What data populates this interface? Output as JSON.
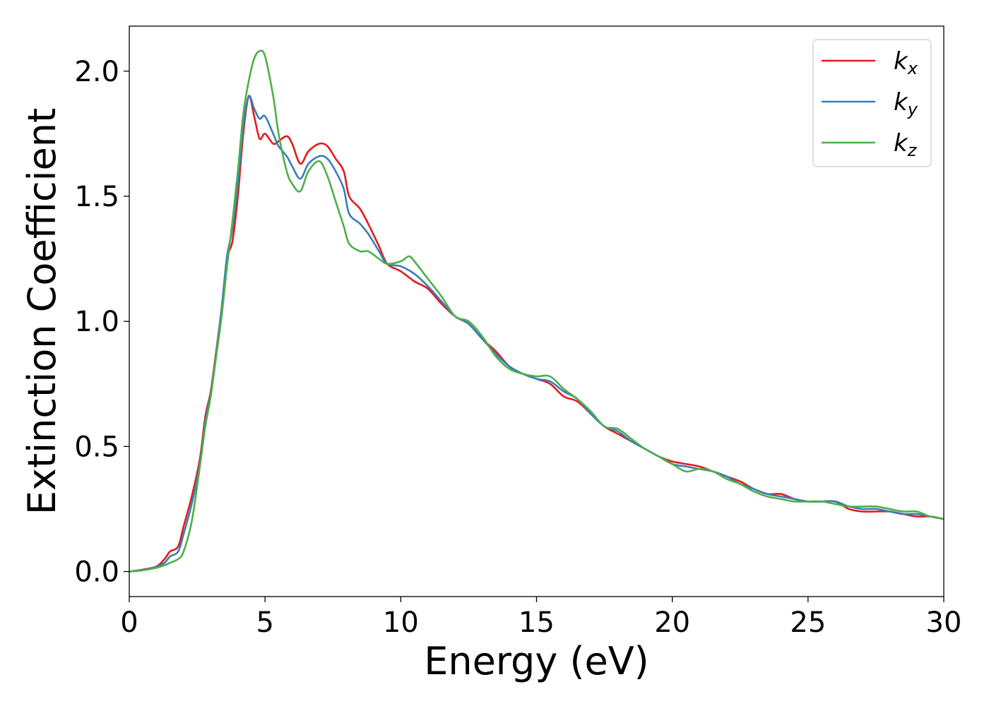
{
  "chart_data": {
    "type": "line",
    "title": "",
    "xlabel": "Energy (eV)",
    "ylabel": "Extinction Coefficient",
    "xlim": [
      0,
      30
    ],
    "ylim": [
      -0.1,
      2.18
    ],
    "xticks": [
      0,
      5,
      10,
      15,
      20,
      25,
      30
    ],
    "xtick_labels": [
      "0",
      "5",
      "10",
      "15",
      "20",
      "25",
      "30"
    ],
    "yticks": [
      0.0,
      0.5,
      1.0,
      1.5,
      2.0
    ],
    "ytick_labels": [
      "0.0",
      "0.5",
      "1.0",
      "1.5",
      "2.0"
    ],
    "grid": false,
    "legend_position": "top-right",
    "series": [
      {
        "name": "k_x",
        "legend_main": "k",
        "legend_sub": "x",
        "color": "#e41a1c",
        "points": [
          [
            0,
            0.0
          ],
          [
            0.5,
            0.008
          ],
          [
            1.0,
            0.02
          ],
          [
            1.3,
            0.05
          ],
          [
            1.5,
            0.08
          ],
          [
            1.8,
            0.1
          ],
          [
            2.0,
            0.18
          ],
          [
            2.3,
            0.3
          ],
          [
            2.6,
            0.45
          ],
          [
            2.8,
            0.62
          ],
          [
            3.0,
            0.72
          ],
          [
            3.2,
            0.88
          ],
          [
            3.4,
            1.05
          ],
          [
            3.6,
            1.25
          ],
          [
            3.8,
            1.32
          ],
          [
            4.0,
            1.5
          ],
          [
            4.2,
            1.75
          ],
          [
            4.4,
            1.9
          ],
          [
            4.6,
            1.82
          ],
          [
            4.8,
            1.73
          ],
          [
            5.0,
            1.75
          ],
          [
            5.3,
            1.71
          ],
          [
            5.5,
            1.72
          ],
          [
            5.8,
            1.74
          ],
          [
            6.0,
            1.71
          ],
          [
            6.3,
            1.63
          ],
          [
            6.6,
            1.68
          ],
          [
            7.0,
            1.71
          ],
          [
            7.3,
            1.7
          ],
          [
            7.6,
            1.65
          ],
          [
            7.9,
            1.6
          ],
          [
            8.1,
            1.5
          ],
          [
            8.5,
            1.45
          ],
          [
            8.8,
            1.39
          ],
          [
            9.2,
            1.3
          ],
          [
            9.5,
            1.23
          ],
          [
            10.0,
            1.2
          ],
          [
            10.5,
            1.16
          ],
          [
            11.0,
            1.13
          ],
          [
            11.5,
            1.07
          ],
          [
            12.0,
            1.02
          ],
          [
            12.5,
            0.99
          ],
          [
            13.0,
            0.93
          ],
          [
            13.5,
            0.88
          ],
          [
            14.0,
            0.82
          ],
          [
            14.5,
            0.79
          ],
          [
            15.0,
            0.77
          ],
          [
            15.5,
            0.75
          ],
          [
            16.0,
            0.7
          ],
          [
            16.5,
            0.68
          ],
          [
            17.0,
            0.63
          ],
          [
            17.5,
            0.58
          ],
          [
            18.0,
            0.55
          ],
          [
            18.5,
            0.52
          ],
          [
            19.0,
            0.49
          ],
          [
            19.5,
            0.46
          ],
          [
            20.0,
            0.44
          ],
          [
            20.5,
            0.43
          ],
          [
            21.0,
            0.42
          ],
          [
            21.5,
            0.4
          ],
          [
            22.0,
            0.38
          ],
          [
            22.5,
            0.36
          ],
          [
            23.0,
            0.33
          ],
          [
            23.5,
            0.31
          ],
          [
            24.0,
            0.31
          ],
          [
            24.5,
            0.29
          ],
          [
            25.0,
            0.28
          ],
          [
            25.5,
            0.28
          ],
          [
            26.0,
            0.28
          ],
          [
            26.5,
            0.25
          ],
          [
            27.0,
            0.24
          ],
          [
            27.5,
            0.24
          ],
          [
            28.0,
            0.24
          ],
          [
            28.5,
            0.23
          ],
          [
            29.0,
            0.22
          ],
          [
            29.5,
            0.22
          ],
          [
            30.0,
            0.21
          ]
        ]
      },
      {
        "name": "k_y",
        "legend_main": "k",
        "legend_sub": "y",
        "color": "#377eb8",
        "points": [
          [
            0,
            0.0
          ],
          [
            0.5,
            0.006
          ],
          [
            1.0,
            0.018
          ],
          [
            1.3,
            0.035
          ],
          [
            1.5,
            0.06
          ],
          [
            1.8,
            0.08
          ],
          [
            2.0,
            0.15
          ],
          [
            2.3,
            0.27
          ],
          [
            2.6,
            0.43
          ],
          [
            2.8,
            0.6
          ],
          [
            3.0,
            0.71
          ],
          [
            3.2,
            0.87
          ],
          [
            3.4,
            1.05
          ],
          [
            3.6,
            1.26
          ],
          [
            3.8,
            1.37
          ],
          [
            4.0,
            1.55
          ],
          [
            4.2,
            1.78
          ],
          [
            4.4,
            1.9
          ],
          [
            4.6,
            1.85
          ],
          [
            4.8,
            1.81
          ],
          [
            5.0,
            1.82
          ],
          [
            5.3,
            1.75
          ],
          [
            5.5,
            1.7
          ],
          [
            5.8,
            1.66
          ],
          [
            6.0,
            1.62
          ],
          [
            6.3,
            1.57
          ],
          [
            6.6,
            1.63
          ],
          [
            7.0,
            1.66
          ],
          [
            7.3,
            1.65
          ],
          [
            7.6,
            1.6
          ],
          [
            7.9,
            1.53
          ],
          [
            8.1,
            1.43
          ],
          [
            8.5,
            1.39
          ],
          [
            8.8,
            1.35
          ],
          [
            9.2,
            1.28
          ],
          [
            9.5,
            1.23
          ],
          [
            10.0,
            1.22
          ],
          [
            10.5,
            1.19
          ],
          [
            11.0,
            1.14
          ],
          [
            11.5,
            1.08
          ],
          [
            12.0,
            1.02
          ],
          [
            12.5,
            0.99
          ],
          [
            13.0,
            0.93
          ],
          [
            13.5,
            0.87
          ],
          [
            14.0,
            0.82
          ],
          [
            14.5,
            0.79
          ],
          [
            15.0,
            0.77
          ],
          [
            15.5,
            0.76
          ],
          [
            16.0,
            0.72
          ],
          [
            16.5,
            0.69
          ],
          [
            17.0,
            0.63
          ],
          [
            17.5,
            0.58
          ],
          [
            18.0,
            0.56
          ],
          [
            18.5,
            0.52
          ],
          [
            19.0,
            0.49
          ],
          [
            19.5,
            0.46
          ],
          [
            20.0,
            0.43
          ],
          [
            20.5,
            0.42
          ],
          [
            21.0,
            0.41
          ],
          [
            21.5,
            0.4
          ],
          [
            22.0,
            0.38
          ],
          [
            22.5,
            0.35
          ],
          [
            23.0,
            0.33
          ],
          [
            23.5,
            0.31
          ],
          [
            24.0,
            0.3
          ],
          [
            24.5,
            0.29
          ],
          [
            25.0,
            0.28
          ],
          [
            25.5,
            0.28
          ],
          [
            26.0,
            0.28
          ],
          [
            26.5,
            0.26
          ],
          [
            27.0,
            0.25
          ],
          [
            27.5,
            0.25
          ],
          [
            28.0,
            0.24
          ],
          [
            28.5,
            0.23
          ],
          [
            29.0,
            0.23
          ],
          [
            29.5,
            0.22
          ],
          [
            30.0,
            0.21
          ]
        ]
      },
      {
        "name": "k_z",
        "legend_main": "k",
        "legend_sub": "z",
        "color": "#4daf4a",
        "points": [
          [
            0,
            0.0
          ],
          [
            0.5,
            0.005
          ],
          [
            1.0,
            0.015
          ],
          [
            1.3,
            0.025
          ],
          [
            1.5,
            0.035
          ],
          [
            1.8,
            0.05
          ],
          [
            2.0,
            0.08
          ],
          [
            2.3,
            0.2
          ],
          [
            2.6,
            0.42
          ],
          [
            2.8,
            0.58
          ],
          [
            3.0,
            0.7
          ],
          [
            3.2,
            0.86
          ],
          [
            3.4,
            1.02
          ],
          [
            3.6,
            1.22
          ],
          [
            3.8,
            1.4
          ],
          [
            4.0,
            1.6
          ],
          [
            4.2,
            1.83
          ],
          [
            4.4,
            1.96
          ],
          [
            4.6,
            2.05
          ],
          [
            4.8,
            2.08
          ],
          [
            5.0,
            2.06
          ],
          [
            5.3,
            1.9
          ],
          [
            5.5,
            1.75
          ],
          [
            5.8,
            1.6
          ],
          [
            6.0,
            1.55
          ],
          [
            6.3,
            1.52
          ],
          [
            6.6,
            1.6
          ],
          [
            7.0,
            1.64
          ],
          [
            7.3,
            1.58
          ],
          [
            7.6,
            1.48
          ],
          [
            7.9,
            1.38
          ],
          [
            8.1,
            1.31
          ],
          [
            8.5,
            1.28
          ],
          [
            8.8,
            1.28
          ],
          [
            9.2,
            1.25
          ],
          [
            9.5,
            1.23
          ],
          [
            10.0,
            1.24
          ],
          [
            10.3,
            1.26
          ],
          [
            10.5,
            1.24
          ],
          [
            11.0,
            1.17
          ],
          [
            11.5,
            1.1
          ],
          [
            12.0,
            1.02
          ],
          [
            12.5,
            1.0
          ],
          [
            13.0,
            0.94
          ],
          [
            13.5,
            0.86
          ],
          [
            14.0,
            0.81
          ],
          [
            14.5,
            0.79
          ],
          [
            15.0,
            0.78
          ],
          [
            15.5,
            0.78
          ],
          [
            16.0,
            0.73
          ],
          [
            16.5,
            0.69
          ],
          [
            17.0,
            0.64
          ],
          [
            17.5,
            0.58
          ],
          [
            18.0,
            0.57
          ],
          [
            18.5,
            0.53
          ],
          [
            19.0,
            0.49
          ],
          [
            19.5,
            0.46
          ],
          [
            20.0,
            0.43
          ],
          [
            20.5,
            0.4
          ],
          [
            21.0,
            0.41
          ],
          [
            21.5,
            0.4
          ],
          [
            22.0,
            0.37
          ],
          [
            22.5,
            0.35
          ],
          [
            23.0,
            0.32
          ],
          [
            23.5,
            0.3
          ],
          [
            24.0,
            0.29
          ],
          [
            24.5,
            0.28
          ],
          [
            25.0,
            0.28
          ],
          [
            25.5,
            0.28
          ],
          [
            26.0,
            0.27
          ],
          [
            26.5,
            0.26
          ],
          [
            27.0,
            0.26
          ],
          [
            27.5,
            0.26
          ],
          [
            28.0,
            0.25
          ],
          [
            28.5,
            0.24
          ],
          [
            29.0,
            0.24
          ],
          [
            29.5,
            0.22
          ],
          [
            30.0,
            0.21
          ]
        ]
      }
    ]
  }
}
